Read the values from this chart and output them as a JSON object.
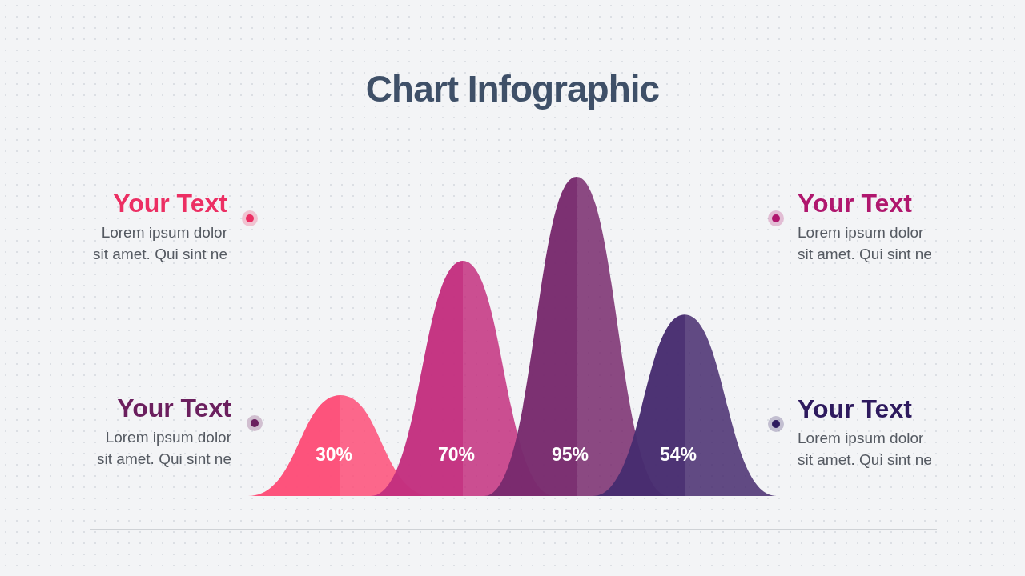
{
  "chart_data": {
    "type": "other",
    "title": "Chart Infographic",
    "categories": [
      null,
      null,
      null,
      null
    ],
    "values": [
      30,
      70,
      95,
      54
    ],
    "value_labels": [
      "30%",
      "70%",
      "95%",
      "54%"
    ],
    "colors": [
      "#fd4d78",
      "#c3307f",
      "#782a6d",
      "#472c6f"
    ],
    "annotations": [
      "Your Text",
      "Lorem ipsum dolor sit amet. Qui sint ne",
      "Your Text",
      "Lorem ipsum dolor sit amet. Qui sint ne",
      "Your Text",
      "Lorem ipsum dolor sit amet. Qui sint ne",
      "Your Text",
      "Lorem ipsum dolor sit amet. Qui sint ne"
    ]
  }
}
